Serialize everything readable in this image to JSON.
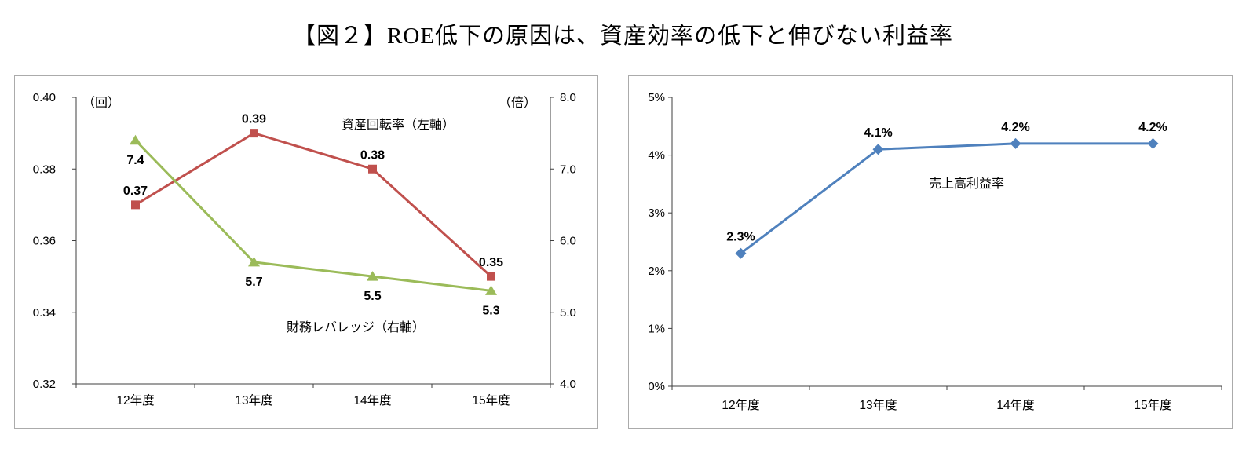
{
  "title": "【図２】ROE低下の原因は、資産効率の低下と伸びない利益率",
  "chart_data": [
    {
      "type": "line",
      "name": "dupont-decomposition-chart",
      "categories": [
        "12年度",
        "13年度",
        "14年度",
        "15年度"
      ],
      "axes": {
        "left": {
          "title": "（回）",
          "min": 0.32,
          "max": 0.4,
          "ticks": [
            "0.40",
            "0.38",
            "0.36",
            "0.34",
            "0.32"
          ]
        },
        "right": {
          "title": "（倍）",
          "min": 4.0,
          "max": 8.0,
          "ticks": [
            "8.0",
            "7.0",
            "6.0",
            "5.0",
            "4.0"
          ]
        }
      },
      "grid": false,
      "series": [
        {
          "name": "資産回転率（左軸）",
          "axis": "left",
          "color": "#C0504D",
          "marker": "square",
          "label_side": "above",
          "values": [
            0.37,
            0.39,
            0.38,
            0.35
          ],
          "point_labels": [
            "0.37",
            "0.39",
            "0.38",
            "0.35"
          ]
        },
        {
          "name": "財務レバレッジ（右軸）",
          "axis": "right",
          "color": "#9BBB59",
          "marker": "triangle",
          "label_side": "below",
          "values": [
            7.4,
            5.7,
            5.5,
            5.3
          ],
          "point_labels": [
            "7.4",
            "5.7",
            "5.5",
            "5.3"
          ]
        }
      ]
    },
    {
      "type": "line",
      "name": "sales-profit-margin-chart",
      "categories": [
        "12年度",
        "13年度",
        "14年度",
        "15年度"
      ],
      "axes": {
        "left": {
          "title": "",
          "min": 0,
          "max": 5,
          "ticks": [
            "5%",
            "4%",
            "3%",
            "2%",
            "1%",
            "0%"
          ]
        }
      },
      "grid": false,
      "series": [
        {
          "name": "売上高利益率",
          "axis": "left",
          "color": "#4F81BD",
          "marker": "diamond",
          "label_side": "above",
          "values": [
            2.3,
            4.1,
            4.2,
            4.2
          ],
          "point_labels": [
            "2.3%",
            "4.1%",
            "4.2%",
            "4.2%"
          ]
        }
      ]
    }
  ]
}
